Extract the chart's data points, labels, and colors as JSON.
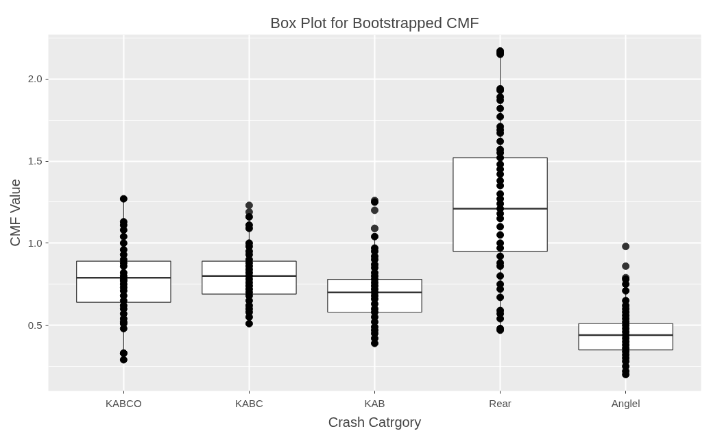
{
  "chart_data": {
    "type": "box",
    "title": "Box Plot for Bootstrapped CMF",
    "xlabel": "Crash Catrgory",
    "ylabel": "CMF Value",
    "categories": [
      "KABCO",
      "KABC",
      "KAB",
      "Rear",
      "Anglel"
    ],
    "ylim": [
      0.1,
      2.27
    ],
    "yticks": [
      0.5,
      {
        "value": 1.0,
        "label": "1.0"
      },
      1.5,
      {
        "value": 2.0,
        "label": "2.0"
      }
    ],
    "grid": true,
    "series": [
      {
        "color": "#ffffff",
        "boxes": [
          {
            "low": 0.29,
            "q1": 0.64,
            "median": 0.79,
            "q3": 0.89,
            "high": 1.27
          },
          {
            "low": 0.51,
            "q1": 0.69,
            "median": 0.8,
            "q3": 0.89,
            "high": 1.16,
            "outliers": [
              1.23,
              1.19
            ]
          },
          {
            "low": 0.4,
            "q1": 0.58,
            "median": 0.7,
            "q3": 0.78,
            "high": 1.04,
            "outliers": [
              1.26,
              1.2,
              1.09,
              1.09
            ]
          },
          {
            "low": 0.47,
            "q1": 0.95,
            "median": 1.21,
            "q3": 1.52,
            "high": 2.16
          },
          {
            "low": 0.2,
            "q1": 0.35,
            "median": 0.44,
            "q3": 0.51,
            "high": 0.75,
            "outliers": [
              0.98,
              0.86,
              0.79
            ]
          }
        ]
      },
      {
        "type": "scatter",
        "color": "#000000",
        "marker": "circle",
        "x": [
          "KABCO",
          "KABCO",
          "KABCO",
          "KABCO",
          "KABCO",
          "KABCO",
          "KABCO",
          "KABCO",
          "KABCO",
          "KABCO",
          "KABCO",
          "KABCO",
          "KABCO",
          "KABCO",
          "KABCO",
          "KABCO",
          "KABCO",
          "KABCO",
          "KABCO",
          "KABCO",
          "KABCO",
          "KABCO",
          "KABCO",
          "KABCO",
          "KABCO",
          "KABCO",
          "KABCO",
          "KABCO",
          "KABCO",
          "KABCO",
          "KABC",
          "KABC",
          "KABC",
          "KABC",
          "KABC",
          "KABC",
          "KABC",
          "KABC",
          "KABC",
          "KABC",
          "KABC",
          "KABC",
          "KABC",
          "KABC",
          "KABC",
          "KABC",
          "KABC",
          "KABC",
          "KABC",
          "KABC",
          "KABC",
          "KABC",
          "KABC",
          "KABC",
          "KABC",
          "KAB",
          "KAB",
          "KAB",
          "KAB",
          "KAB",
          "KAB",
          "KAB",
          "KAB",
          "KAB",
          "KAB",
          "KAB",
          "KAB",
          "KAB",
          "KAB",
          "KAB",
          "KAB",
          "KAB",
          "KAB",
          "KAB",
          "KAB",
          "KAB",
          "KAB",
          "KAB",
          "KAB",
          "KAB",
          "KAB",
          "KAB",
          "Rear",
          "Rear",
          "Rear",
          "Rear",
          "Rear",
          "Rear",
          "Rear",
          "Rear",
          "Rear",
          "Rear",
          "Rear",
          "Rear",
          "Rear",
          "Rear",
          "Rear",
          "Rear",
          "Rear",
          "Rear",
          "Rear",
          "Rear",
          "Rear",
          "Rear",
          "Rear",
          "Rear",
          "Rear",
          "Rear",
          "Rear",
          "Rear",
          "Rear",
          "Rear",
          "Rear",
          "Rear",
          "Rear",
          "Rear",
          "Rear",
          "Rear",
          "Rear",
          "Rear",
          "Rear",
          "Rear",
          "Rear",
          "Rear",
          "Rear",
          "Anglel",
          "Anglel",
          "Anglel",
          "Anglel",
          "Anglel",
          "Anglel",
          "Anglel",
          "Anglel",
          "Anglel",
          "Anglel",
          "Anglel",
          "Anglel",
          "Anglel",
          "Anglel",
          "Anglel",
          "Anglel",
          "Anglel",
          "Anglel",
          "Anglel",
          "Anglel",
          "Anglel",
          "Anglel",
          "Anglel",
          "Anglel",
          "Anglel"
        ],
        "values": [
          1.27,
          1.13,
          1.11,
          1.08,
          1.04,
          1.0,
          0.96,
          0.93,
          0.9,
          0.88,
          0.86,
          0.82,
          0.8,
          0.78,
          0.77,
          0.75,
          0.73,
          0.71,
          0.68,
          0.65,
          0.62,
          0.6,
          0.57,
          0.54,
          0.52,
          0.51,
          0.48,
          0.33,
          0.33,
          0.29,
          1.16,
          1.11,
          1.09,
          1.0,
          0.98,
          0.95,
          0.93,
          0.9,
          0.88,
          0.86,
          0.84,
          0.82,
          0.8,
          0.78,
          0.76,
          0.74,
          0.72,
          0.7,
          0.68,
          0.65,
          0.62,
          0.6,
          0.58,
          0.55,
          0.51,
          1.25,
          1.04,
          0.97,
          0.95,
          0.92,
          0.9,
          0.87,
          0.85,
          0.82,
          0.8,
          0.78,
          0.76,
          0.74,
          0.72,
          0.7,
          0.68,
          0.66,
          0.63,
          0.6,
          0.58,
          0.55,
          0.52,
          0.49,
          0.47,
          0.45,
          0.42,
          0.39,
          2.17,
          2.16,
          2.15,
          1.94,
          1.93,
          1.89,
          1.87,
          1.82,
          1.77,
          1.71,
          1.69,
          1.67,
          1.62,
          1.57,
          1.55,
          1.52,
          1.48,
          1.45,
          1.42,
          1.38,
          1.35,
          1.3,
          1.27,
          1.24,
          1.21,
          1.18,
          1.15,
          1.1,
          1.05,
          1.0,
          0.97,
          0.92,
          0.88,
          0.86,
          0.8,
          0.75,
          0.72,
          0.67,
          0.59,
          0.57,
          0.54,
          0.48,
          0.47,
          0.78,
          0.75,
          0.71,
          0.65,
          0.62,
          0.6,
          0.58,
          0.56,
          0.54,
          0.52,
          0.5,
          0.48,
          0.46,
          0.44,
          0.42,
          0.4,
          0.38,
          0.36,
          0.34,
          0.32,
          0.3,
          0.28,
          0.25,
          0.22,
          0.2
        ]
      }
    ]
  }
}
